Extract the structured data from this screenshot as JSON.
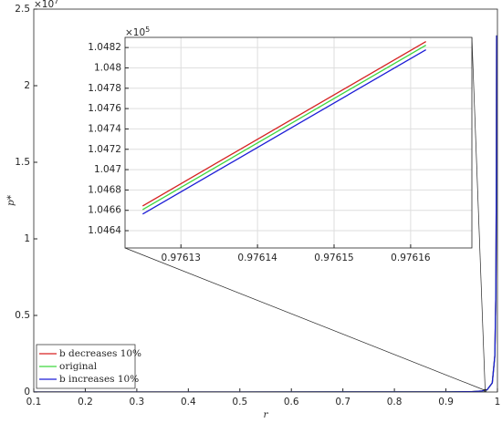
{
  "chart_data": [
    {
      "type": "line",
      "xlabel": "r",
      "ylabel": "p*",
      "x": [
        0.1,
        0.5,
        0.9,
        0.95,
        0.97,
        0.98,
        0.99,
        0.995,
        0.997,
        0.998,
        0.9984
      ],
      "series": [
        {
          "name": "b decreases 10%",
          "color": "#d62020",
          "values": [
            73.6,
            238.4,
            5960,
            23840,
            66222,
            149000,
            596000,
            2384000,
            6622222,
            14900000,
            23281250
          ]
        },
        {
          "name": "original",
          "color": "#3ed63e",
          "values": [
            73.6,
            238.4,
            5960,
            23840,
            66222,
            149000,
            596000,
            2384000,
            6622222,
            14900000,
            23281250
          ]
        },
        {
          "name": "b increases 10%",
          "color": "#1c1cd6",
          "values": [
            73.6,
            238.4,
            5960,
            23840,
            66222,
            149000,
            596000,
            2384000,
            6622222,
            14900000,
            23281250
          ]
        }
      ],
      "xlim": [
        0.1,
        1
      ],
      "ylim": [
        0,
        25000000
      ],
      "xticks": [
        0.1,
        0.2,
        0.3,
        0.4,
        0.5,
        0.6,
        0.7,
        0.8,
        0.9,
        1
      ],
      "yticks": [
        0,
        {
          "value": 5000000,
          "label": "0.5"
        },
        {
          "value": 10000000,
          "label": "1"
        },
        {
          "value": 15000000,
          "label": "1.5"
        },
        {
          "value": 20000000,
          "label": "2"
        },
        {
          "value": 25000000,
          "label": "2.5"
        }
      ],
      "y_exponent": {
        "base": "×10",
        "power": "7"
      },
      "grid": false,
      "legend": "lower left"
    },
    {
      "type": "line",
      "x": [
        0.976125,
        0.976162
      ],
      "series": [
        {
          "color": "#d62020",
          "values": [
            104664.3,
            104825.9
          ]
        },
        {
          "color": "#3ed63e",
          "values": [
            104660.7,
            104822.3
          ]
        },
        {
          "color": "#1c1cd6",
          "values": [
            104656.3,
            104817.9
          ]
        }
      ],
      "xlim": [
        0.9761227,
        0.976168
      ],
      "ylim": [
        104623,
        104830
      ],
      "xticks": [
        0.97613,
        0.97614,
        0.97615,
        0.97616
      ],
      "yticks": [
        {
          "value": 104640,
          "label": "1.0464"
        },
        {
          "value": 104660,
          "label": "1.0466"
        },
        {
          "value": 104680,
          "label": "1.0468"
        },
        {
          "value": 104700,
          "label": "1.047"
        },
        {
          "value": 104720,
          "label": "1.0472"
        },
        {
          "value": 104740,
          "label": "1.0474"
        },
        {
          "value": 104760,
          "label": "1.0476"
        },
        {
          "value": 104780,
          "label": "1.0478"
        },
        {
          "value": 104800,
          "label": "1.048"
        },
        {
          "value": 104820,
          "label": "1.0482"
        }
      ],
      "y_exponent": {
        "base": "×10",
        "power": "5"
      },
      "grid": true
    }
  ]
}
